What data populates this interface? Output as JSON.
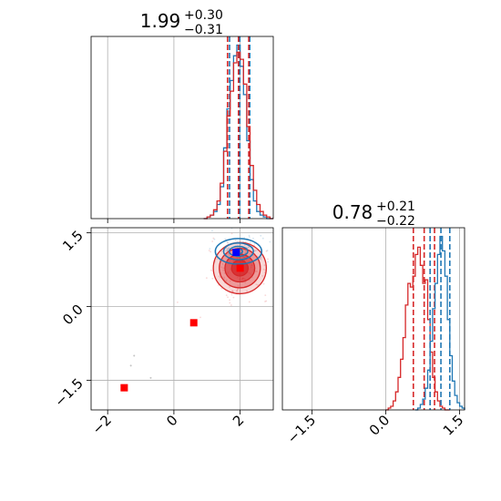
{
  "chart_data": {
    "type": "corner",
    "panels": [
      {
        "id": "marginal-param-1",
        "type": "histogram",
        "title": {
          "value": "1.99",
          "plus": "+0.30",
          "minus": "−0.31"
        },
        "xlim": [
          -2.5,
          3.0
        ],
        "grid": true,
        "series": [
          {
            "name": "",
            "color": "#1f77b4",
            "bin_edges": [
              0.9,
              1.0,
              1.1,
              1.2,
              1.3,
              1.4,
              1.5,
              1.6,
              1.7,
              1.8,
              1.9,
              2.0,
              2.1,
              2.2,
              2.3,
              2.4,
              2.5,
              2.6,
              2.7,
              2.8,
              2.9,
              3.0
            ],
            "counts": [
              0,
              1,
              2,
              4,
              8,
              18,
              40,
              62,
              78,
              92,
              98,
              86,
              70,
              44,
              22,
              10,
              4,
              2,
              1,
              0,
              0
            ],
            "quantiles": [
              1.68,
              1.99,
              2.29
            ]
          },
          {
            "name": "",
            "color": "#d62728",
            "bin_edges": [
              0.9,
              1.0,
              1.1,
              1.2,
              1.3,
              1.4,
              1.5,
              1.6,
              1.7,
              1.8,
              1.9,
              2.0,
              2.1,
              2.2,
              2.3,
              2.4,
              2.5,
              2.6,
              2.7,
              2.8,
              2.9,
              3.0
            ],
            "counts": [
              0,
              1,
              2,
              5,
              10,
              20,
              38,
              58,
              72,
              88,
              94,
              90,
              76,
              52,
              30,
              16,
              8,
              4,
              2,
              1,
              0
            ],
            "quantiles": [
              1.62,
              1.95,
              2.26
            ]
          }
        ]
      },
      {
        "id": "joint",
        "type": "scatter-contour",
        "xlim": [
          -2.5,
          3.0
        ],
        "ylim": [
          -2.1,
          1.6
        ],
        "xticks": [
          "−2",
          "0",
          "2"
        ],
        "xtick_values": [
          -2,
          0,
          2
        ],
        "yticks": [
          "−1.5",
          "0.0",
          "1.5"
        ],
        "ytick_values": [
          -1.5,
          0.0,
          1.5
        ],
        "grid": true,
        "markers": [
          {
            "x": 1.88,
            "y": 1.1,
            "color": "#0000ff",
            "shape": "square"
          },
          {
            "x": 2.0,
            "y": 0.78,
            "color": "#ff0000",
            "shape": "square"
          },
          {
            "x": 0.6,
            "y": -0.33,
            "color": "#ff0000",
            "shape": "square"
          },
          {
            "x": -1.5,
            "y": -1.65,
            "color": "#ff0000",
            "shape": "square"
          }
        ],
        "contours": [
          {
            "color": "#1f77b4",
            "center": [
              1.95,
              1.12
            ],
            "rx": [
              0.12,
              0.28,
              0.45,
              0.7
            ],
            "ry": [
              0.05,
              0.1,
              0.17,
              0.26
            ]
          },
          {
            "color": "#d62728",
            "center": [
              1.99,
              0.78
            ],
            "rx": [
              0.25,
              0.45,
              0.62,
              0.8
            ],
            "ry": [
              0.16,
              0.28,
              0.4,
              0.52
            ]
          }
        ],
        "outliers": [
          {
            "x": -1.2,
            "y": -1.0
          },
          {
            "x": -1.3,
            "y": -1.2
          },
          {
            "x": -0.7,
            "y": -1.45
          }
        ]
      },
      {
        "id": "marginal-param-2",
        "type": "histogram",
        "title": {
          "value": "0.78",
          "plus": "+0.21",
          "minus": "−0.22"
        },
        "xlim": [
          -2.1,
          1.6
        ],
        "xticks": [
          "−1.5",
          "0.0",
          "1.5"
        ],
        "xtick_values": [
          -1.5,
          0.0,
          1.5
        ],
        "grid": true,
        "series": [
          {
            "name": "",
            "color": "#d62728",
            "bin_edges": [
              0.0,
              0.05,
              0.1,
              0.15,
              0.2,
              0.25,
              0.3,
              0.35,
              0.4,
              0.45,
              0.5,
              0.55,
              0.6,
              0.65,
              0.7,
              0.75,
              0.8,
              0.85,
              0.9,
              0.95,
              1.0,
              1.05,
              1.1,
              1.15,
              1.2,
              1.25,
              1.3
            ],
            "counts": [
              0,
              1,
              2,
              5,
              10,
              18,
              28,
              40,
              58,
              70,
              68,
              74,
              86,
              90,
              80,
              70,
              72,
              50,
              32,
              18,
              10,
              5,
              2,
              1,
              0,
              0
            ],
            "quantiles": [
              0.56,
              0.78,
              0.99
            ]
          },
          {
            "name": "",
            "color": "#1f77b4",
            "bin_edges": [
              0.6,
              0.65,
              0.7,
              0.75,
              0.8,
              0.85,
              0.9,
              0.95,
              1.0,
              1.05,
              1.1,
              1.15,
              1.2,
              1.25,
              1.3,
              1.35,
              1.4,
              1.45,
              1.5,
              1.55,
              1.6
            ],
            "counts": [
              0,
              1,
              3,
              6,
              12,
              22,
              38,
              56,
              70,
              86,
              96,
              88,
              74,
              50,
              30,
              16,
              8,
              4,
              2,
              1
            ],
            "quantiles": [
              0.9,
              1.12,
              1.3
            ]
          }
        ]
      }
    ]
  }
}
